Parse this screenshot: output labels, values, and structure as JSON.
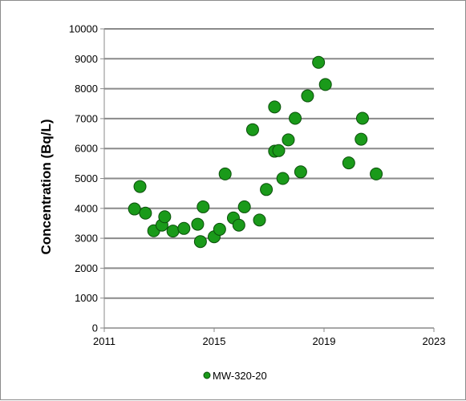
{
  "chart_data": {
    "type": "scatter",
    "title": "",
    "xlabel": "",
    "ylabel": "Concentration (Bq/L)",
    "xlim": [
      2011,
      2023
    ],
    "ylim": [
      0,
      10000
    ],
    "x_ticks": [
      2011,
      2015,
      2019,
      2023
    ],
    "y_ticks": [
      0,
      1000,
      2000,
      3000,
      4000,
      5000,
      6000,
      7000,
      8000,
      9000,
      10000
    ],
    "grid": "horizontal",
    "legend_position": "bottom",
    "series": [
      {
        "name": "MW-320-20",
        "color": "#1a9a1a",
        "x": [
          2012.1,
          2012.3,
          2012.5,
          2012.8,
          2013.1,
          2013.2,
          2013.5,
          2013.9,
          2014.4,
          2014.5,
          2014.6,
          2015.0,
          2015.2,
          2015.4,
          2015.7,
          2015.9,
          2016.1,
          2016.4,
          2016.65,
          2016.9,
          2017.2,
          2017.2,
          2017.35,
          2017.5,
          2017.7,
          2017.95,
          2018.15,
          2018.4,
          2018.8,
          2019.05,
          2019.9,
          2020.35,
          2020.4,
          2020.9
        ],
        "y": [
          3980,
          4730,
          3840,
          3250,
          3440,
          3720,
          3240,
          3330,
          3470,
          2890,
          4050,
          3050,
          3300,
          5150,
          3680,
          3440,
          4050,
          6630,
          3610,
          4630,
          5910,
          7390,
          5930,
          5000,
          6290,
          7010,
          5220,
          7760,
          8880,
          8140,
          5520,
          6310,
          7010,
          5150
        ]
      }
    ]
  }
}
